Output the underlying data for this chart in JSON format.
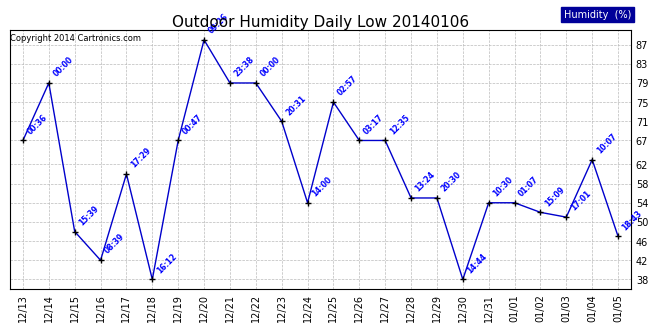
{
  "title": "Outdoor Humidity Daily Low 20140106",
  "copyright": "Copyright 2014 Cartronics.com",
  "legend_label": "Humidity  (%)",
  "x_labels": [
    "12/13",
    "12/14",
    "12/15",
    "12/16",
    "12/17",
    "12/18",
    "12/19",
    "12/20",
    "12/21",
    "12/22",
    "12/23",
    "12/24",
    "12/25",
    "12/26",
    "12/27",
    "12/28",
    "12/29",
    "12/30",
    "12/31",
    "01/01",
    "01/02",
    "01/03",
    "01/04",
    "01/05"
  ],
  "y_values": [
    67,
    79,
    48,
    42,
    60,
    38,
    67,
    88,
    79,
    79,
    71,
    54,
    75,
    67,
    67,
    55,
    55,
    38,
    54,
    54,
    52,
    51,
    63,
    47
  ],
  "time_labels": [
    "00:36",
    "00:00",
    "15:39",
    "08:39",
    "17:29",
    "16:12",
    "00:47",
    "09:26",
    "23:38",
    "00:00",
    "20:31",
    "14:00",
    "02:57",
    "03:17",
    "12:35",
    "13:24",
    "20:30",
    "14:44",
    "10:30",
    "01:07",
    "15:09",
    "17:01",
    "10:07",
    "18:43"
  ],
  "line_color": "#0000cc",
  "marker_color": "#000000",
  "background_color": "#ffffff",
  "grid_color": "#bbbbbb",
  "ylim_min": 36,
  "ylim_max": 90,
  "yticks": [
    38,
    42,
    46,
    50,
    54,
    58,
    62,
    67,
    71,
    75,
    79,
    83,
    87
  ],
  "legend_bg": "#000099",
  "legend_fg": "#ffffff",
  "title_color": "#000000",
  "copyright_color": "#000000",
  "label_color": "#0000ff",
  "title_fontsize": 11,
  "copyright_fontsize": 6,
  "legend_fontsize": 7,
  "tick_label_fontsize": 7,
  "annotation_fontsize": 5.5
}
